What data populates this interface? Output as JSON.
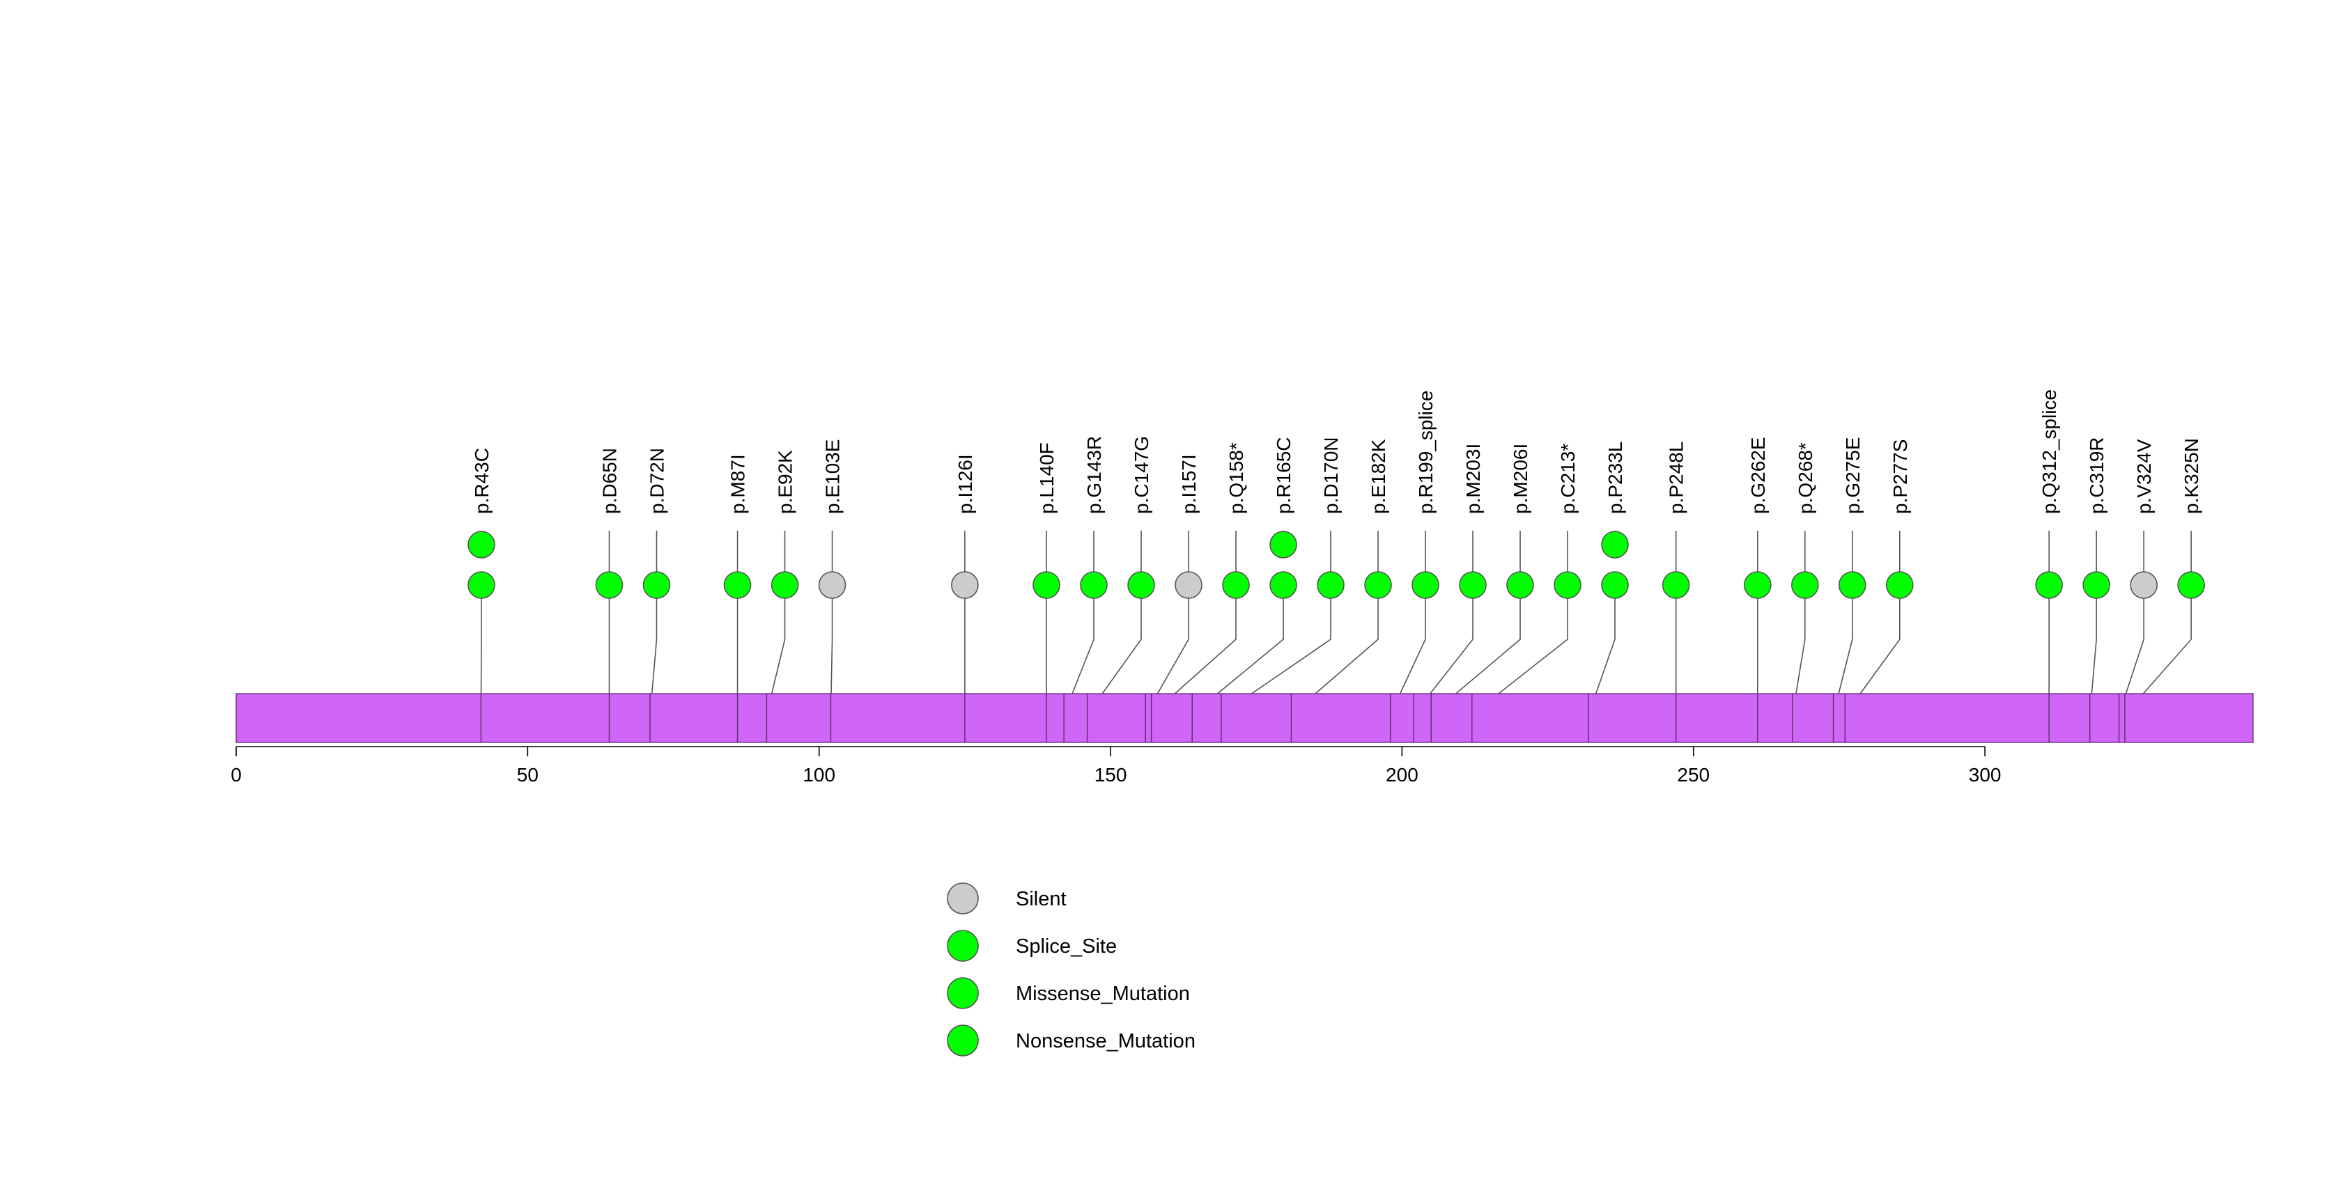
{
  "chart_data": {
    "type": "lollipop",
    "title": "",
    "xlabel": "",
    "ylabel": "",
    "xlim": [
      0,
      346
    ],
    "protein_bar_color": "#d066f7",
    "xticks": [
      0,
      50,
      100,
      150,
      200,
      250,
      300
    ],
    "xtick_labels": [
      "0",
      "50",
      "100",
      "150",
      "200",
      "250",
      "300"
    ],
    "mutations": [
      {
        "label": "p.R43C",
        "pos": 42,
        "count": 2,
        "type": "Missense_Mutation"
      },
      {
        "label": "p.D65N",
        "pos": 64,
        "count": 1,
        "type": "Missense_Mutation"
      },
      {
        "label": "p.D72N",
        "pos": 71,
        "count": 1,
        "type": "Missense_Mutation"
      },
      {
        "label": "p.M87I",
        "pos": 86,
        "count": 1,
        "type": "Missense_Mutation"
      },
      {
        "label": "p.E92K",
        "pos": 91,
        "count": 1,
        "type": "Missense_Mutation"
      },
      {
        "label": "p.E103E",
        "pos": 102,
        "count": 1,
        "type": "Silent"
      },
      {
        "label": "p.I126I",
        "pos": 125,
        "count": 1,
        "type": "Silent"
      },
      {
        "label": "p.L140F",
        "pos": 139,
        "count": 1,
        "type": "Missense_Mutation"
      },
      {
        "label": "p.G143R",
        "pos": 142,
        "count": 1,
        "type": "Missense_Mutation"
      },
      {
        "label": "p.C147G",
        "pos": 146,
        "count": 1,
        "type": "Missense_Mutation"
      },
      {
        "label": "p.I157I",
        "pos": 156,
        "count": 1,
        "type": "Silent"
      },
      {
        "label": "p.Q158*",
        "pos": 157,
        "count": 1,
        "type": "Nonsense_Mutation"
      },
      {
        "label": "p.R165C",
        "pos": 164,
        "count": 2,
        "type": "Missense_Mutation"
      },
      {
        "label": "p.D170N",
        "pos": 169,
        "count": 1,
        "type": "Missense_Mutation"
      },
      {
        "label": "p.E182K",
        "pos": 181,
        "count": 1,
        "type": "Missense_Mutation"
      },
      {
        "label": "p.R199_splice",
        "pos": 198,
        "count": 1,
        "type": "Splice_Site"
      },
      {
        "label": "p.M203I",
        "pos": 202,
        "count": 1,
        "type": "Missense_Mutation"
      },
      {
        "label": "p.M206I",
        "pos": 205,
        "count": 1,
        "type": "Missense_Mutation"
      },
      {
        "label": "p.C213*",
        "pos": 212,
        "count": 1,
        "type": "Nonsense_Mutation"
      },
      {
        "label": "p.P233L",
        "pos": 232,
        "count": 2,
        "type": "Missense_Mutation"
      },
      {
        "label": "p.P248L",
        "pos": 247,
        "count": 1,
        "type": "Missense_Mutation"
      },
      {
        "label": "p.G262E",
        "pos": 261,
        "count": 1,
        "type": "Missense_Mutation"
      },
      {
        "label": "p.Q268*",
        "pos": 267,
        "count": 1,
        "type": "Nonsense_Mutation"
      },
      {
        "label": "p.G275E",
        "pos": 274,
        "count": 1,
        "type": "Missense_Mutation"
      },
      {
        "label": "p.P277S",
        "pos": 276,
        "count": 1,
        "type": "Missense_Mutation"
      },
      {
        "label": "p.Q312_splice",
        "pos": 311,
        "count": 1,
        "type": "Splice_Site"
      },
      {
        "label": "p.C319R",
        "pos": 318,
        "count": 1,
        "type": "Missense_Mutation"
      },
      {
        "label": "p.V324V",
        "pos": 323,
        "count": 1,
        "type": "Silent"
      },
      {
        "label": "p.K325N",
        "pos": 324,
        "count": 1,
        "type": "Missense_Mutation"
      }
    ],
    "legend": [
      {
        "label": "Silent",
        "color": "#cccccc"
      },
      {
        "label": "Splice_Site",
        "color": "#00ff00"
      },
      {
        "label": "Missense_Mutation",
        "color": "#00ff00"
      },
      {
        "label": "Nonsense_Mutation",
        "color": "#00ff00"
      }
    ]
  }
}
